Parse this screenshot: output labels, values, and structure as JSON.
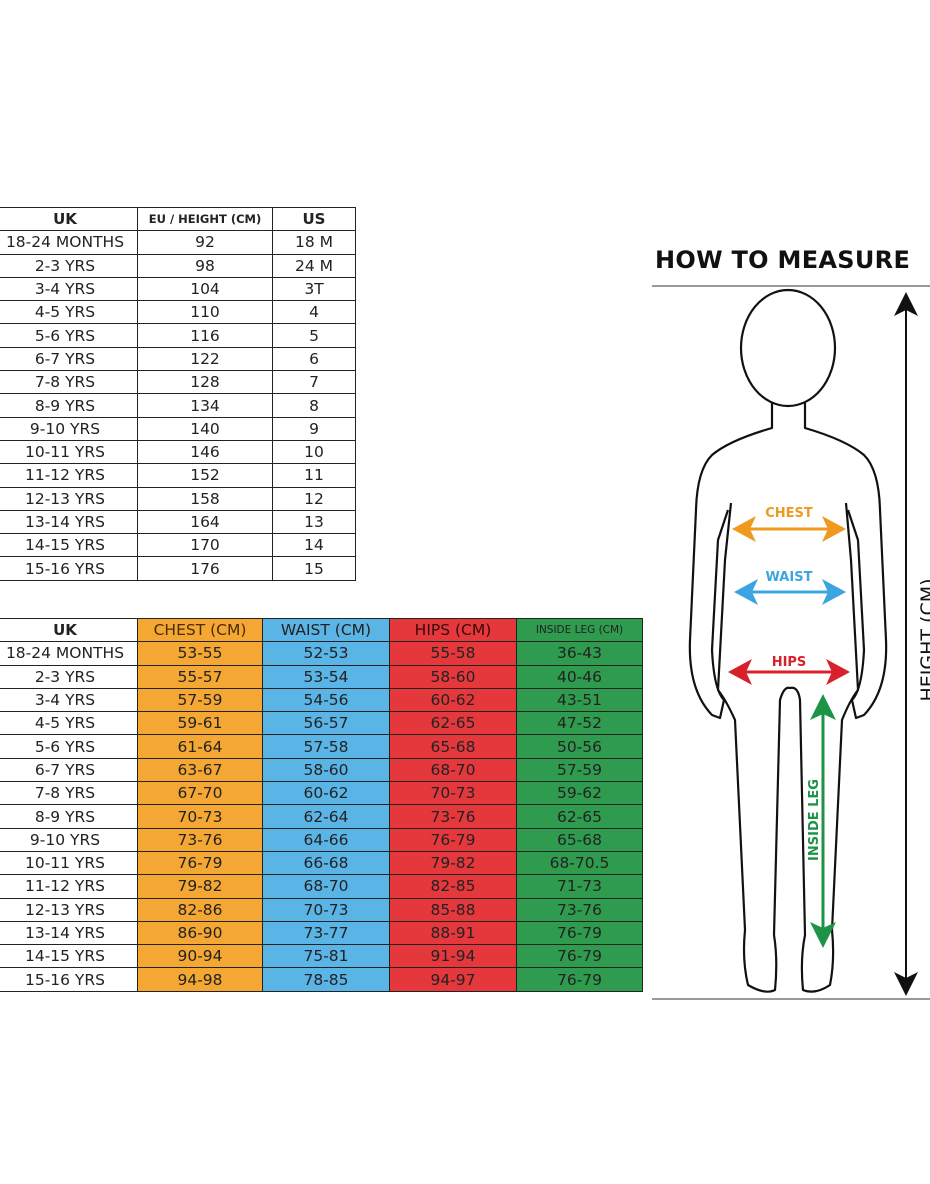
{
  "size_table": {
    "headers": [
      "UK",
      "EU / HEIGHT (CM)",
      "US"
    ],
    "rows": [
      [
        "18-24 MONTHS",
        "92",
        "18 M"
      ],
      [
        "2-3 YRS",
        "98",
        "24 M"
      ],
      [
        "3-4 YRS",
        "104",
        "3T"
      ],
      [
        "4-5 YRS",
        "110",
        "4"
      ],
      [
        "5-6 YRS",
        "116",
        "5"
      ],
      [
        "6-7 YRS",
        "122",
        "6"
      ],
      [
        "7-8 YRS",
        "128",
        "7"
      ],
      [
        "8-9 YRS",
        "134",
        "8"
      ],
      [
        "9-10 YRS",
        "140",
        "9"
      ],
      [
        "10-11 YRS",
        "146",
        "10"
      ],
      [
        "11-12 YRS",
        "152",
        "11"
      ],
      [
        "12-13 YRS",
        "158",
        "12"
      ],
      [
        "13-14 YRS",
        "164",
        "13"
      ],
      [
        "14-15 YRS",
        "170",
        "14"
      ],
      [
        "15-16 YRS",
        "176",
        "15"
      ]
    ]
  },
  "measure_table": {
    "headers": [
      "UK",
      "CHEST (CM)",
      "WAIST (CM)",
      "HIPS (CM)",
      "INSIDE LEG (CM)"
    ],
    "colors": [
      "#ffffff",
      "#f5a733",
      "#5ab4e6",
      "#e5383d",
      "#2f9b4e"
    ],
    "rows": [
      [
        "18-24 MONTHS",
        "53-55",
        "52-53",
        "55-58",
        "36-43"
      ],
      [
        "2-3 YRS",
        "55-57",
        "53-54",
        "58-60",
        "40-46"
      ],
      [
        "3-4 YRS",
        "57-59",
        "54-56",
        "60-62",
        "43-51"
      ],
      [
        "4-5 YRS",
        "59-61",
        "56-57",
        "62-65",
        "47-52"
      ],
      [
        "5-6 YRS",
        "61-64",
        "57-58",
        "65-68",
        "50-56"
      ],
      [
        "6-7 YRS",
        "63-67",
        "58-60",
        "68-70",
        "57-59"
      ],
      [
        "7-8 YRS",
        "67-70",
        "60-62",
        "70-73",
        "59-62"
      ],
      [
        "8-9 YRS",
        "70-73",
        "62-64",
        "73-76",
        "62-65"
      ],
      [
        "9-10 YRS",
        "73-76",
        "64-66",
        "76-79",
        "65-68"
      ],
      [
        "10-11 YRS",
        "76-79",
        "66-68",
        "79-82",
        "68-70.5"
      ],
      [
        "11-12 YRS",
        "79-82",
        "68-70",
        "82-85",
        "71-73"
      ],
      [
        "12-13 YRS",
        "82-86",
        "70-73",
        "85-88",
        "73-76"
      ],
      [
        "13-14 YRS",
        "86-90",
        "73-77",
        "88-91",
        "76-79"
      ],
      [
        "14-15 YRS",
        "90-94",
        "75-81",
        "91-94",
        "76-79"
      ],
      [
        "15-16 YRS",
        "94-98",
        "78-85",
        "94-97",
        "76-79"
      ]
    ]
  },
  "how_to_measure": {
    "title": "HOW TO MEASURE",
    "chest": "CHEST",
    "waist": "WAIST",
    "hips": "HIPS",
    "inside_leg": "INSIDE LEG",
    "height": "HEIGHT (CM)",
    "colors": {
      "chest": "#ef9a1e",
      "waist": "#3aa5e0",
      "hips": "#d8202a",
      "inside_leg": "#1d9346"
    }
  }
}
